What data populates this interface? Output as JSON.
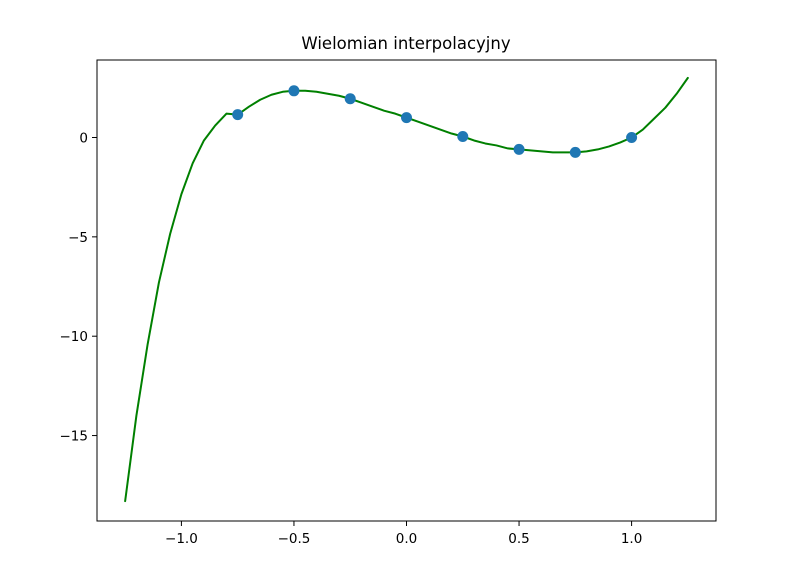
{
  "chart_data": {
    "type": "line",
    "title": "Wielomian interpolacyjny",
    "xlabel": "",
    "ylabel": "",
    "xlim": [
      -1.375,
      1.375
    ],
    "ylim": [
      -19.3,
      3.9
    ],
    "grid": false,
    "x_ticks": [
      -1.0,
      -0.5,
      0.0,
      0.5,
      1.0
    ],
    "x_tick_labels": [
      "−1.0",
      "−0.5",
      "0.0",
      "0.5",
      "1.0"
    ],
    "y_ticks": [
      0,
      -5,
      -10,
      -15
    ],
    "y_tick_labels": [
      "0",
      "−5",
      "−10",
      "−15"
    ],
    "series": [
      {
        "kind": "line",
        "color": "#008000",
        "x": [
          -1.25,
          -1.2,
          -1.15,
          -1.1,
          -1.05,
          -1.0,
          -0.95,
          -0.9,
          -0.85,
          -0.8,
          -0.75,
          -0.7,
          -0.65,
          -0.6,
          -0.55,
          -0.5,
          -0.45,
          -0.4,
          -0.35,
          -0.3,
          -0.25,
          -0.2,
          -0.15,
          -0.1,
          -0.05,
          0.0,
          0.05,
          0.1,
          0.15,
          0.2,
          0.25,
          0.3,
          0.35,
          0.4,
          0.45,
          0.5,
          0.55,
          0.6,
          0.65,
          0.7,
          0.75,
          0.8,
          0.85,
          0.9,
          0.95,
          1.0,
          1.05,
          1.1,
          1.15,
          1.2,
          1.25
        ],
        "y": [
          -18.3,
          -14.0,
          -10.4,
          -7.3,
          -4.85,
          -2.85,
          -1.3,
          -0.15,
          0.6,
          1.2,
          1.15,
          1.55,
          1.9,
          2.15,
          2.3,
          2.35,
          2.35,
          2.3,
          2.2,
          2.1,
          1.95,
          1.75,
          1.55,
          1.35,
          1.2,
          1.0,
          0.8,
          0.6,
          0.4,
          0.2,
          0.05,
          -0.15,
          -0.3,
          -0.4,
          -0.55,
          -0.6,
          -0.65,
          -0.7,
          -0.75,
          -0.75,
          -0.75,
          -0.7,
          -0.6,
          -0.45,
          -0.25,
          0.0,
          0.4,
          0.95,
          1.5,
          2.2,
          3.0
        ]
      },
      {
        "kind": "scatter",
        "color": "#1f77b4",
        "x": [
          -0.75,
          -0.5,
          -0.25,
          0.0,
          0.25,
          0.5,
          0.75,
          1.0
        ],
        "y": [
          1.15,
          2.35,
          1.95,
          1.0,
          0.05,
          -0.6,
          -0.75,
          0.0
        ]
      }
    ]
  }
}
